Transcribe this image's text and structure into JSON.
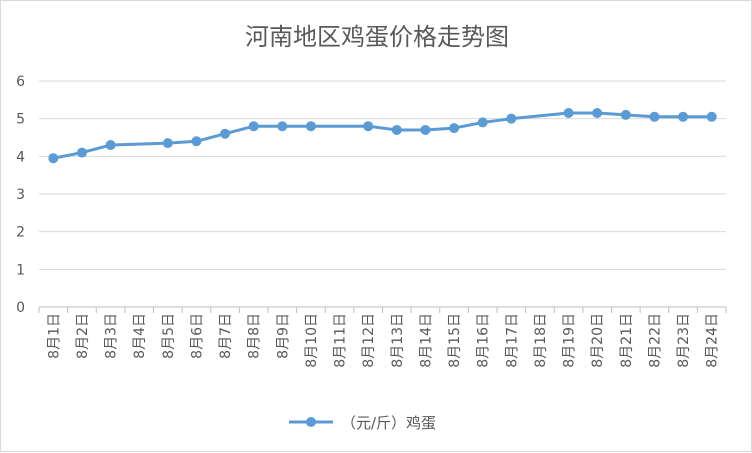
{
  "chart_data": {
    "type": "line",
    "title": "河南地区鸡蛋价格走势图",
    "xlabel": "",
    "ylabel": "",
    "categories": [
      "8月1日",
      "8月2日",
      "8月3日",
      "8月4日",
      "8月5日",
      "8月6日",
      "8月7日",
      "8月8日",
      "8月9日",
      "8月10日",
      "8月11日",
      "8月12日",
      "8月13日",
      "8月14日",
      "8月15日",
      "8月16日",
      "8月17日",
      "8月18日",
      "8月19日",
      "8月20日",
      "8月21日",
      "8月22日",
      "8月23日",
      "8月24日"
    ],
    "y_ticks": [
      "0",
      "1",
      "2",
      "3",
      "4",
      "5",
      "6"
    ],
    "ylim": [
      0,
      6
    ],
    "grid": true,
    "legend_position": "bottom",
    "series": [
      {
        "name": "（元/斤）鸡蛋",
        "color": "#5b9bd5",
        "values": [
          3.95,
          4.1,
          4.3,
          null,
          4.35,
          4.4,
          4.6,
          4.8,
          4.8,
          4.8,
          null,
          4.8,
          4.7,
          4.7,
          4.75,
          4.9,
          5.0,
          null,
          5.15,
          5.15,
          5.1,
          5.05,
          5.05,
          5.05
        ]
      }
    ]
  }
}
